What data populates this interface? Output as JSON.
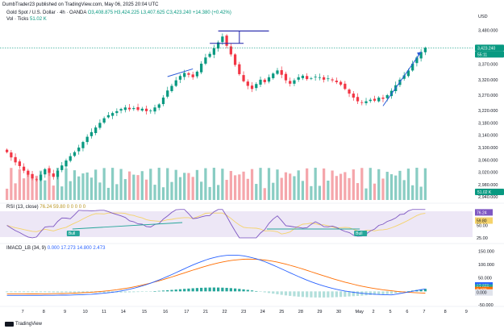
{
  "header": {
    "publisher": "DumbTrader23 published on TradingView.com, May 06, 2025 20:04 UTC",
    "title": "Gold Spot / U.S. Dollar · 4h · OANDA",
    "ohlc": "O3,408.875  H3,424.225  L3,407.625  C3,423.240  +14.380 (+0.42%)",
    "volume_label": "Vol · Ticks",
    "volume_value": "51.02 K",
    "currency": "USD"
  },
  "rsi_legend": {
    "label": "RSI (13, close)",
    "values": "76.24  59.80  0  0  0  0  0"
  },
  "macd_legend": {
    "label": "IMACD_LB (34, 9)",
    "values": "0.000  17.273  14.800  2.473"
  },
  "footer": {
    "brand": "TradingView"
  },
  "colors": {
    "up": "#089981",
    "down": "#f23645",
    "vol_up": "#89cdc3",
    "vol_down": "#f5a6ab",
    "rsi_line": "#7e57c2",
    "rsi_ma": "#f5d36b",
    "rsi_band": "#ede7f6",
    "macd_blue": "#2962ff",
    "macd_orange": "#ff6d00",
    "annot": "#1e22aa",
    "trend": "#2a5ad7",
    "price_tag": "#089981"
  },
  "chart_data": {
    "type": "candlestick",
    "symbol": "Gold Spot / U.S. Dollar",
    "interval": "4h",
    "x_ticks": [
      "7",
      "8",
      "9",
      "10",
      "11",
      "14",
      "15",
      "16",
      "17",
      "21",
      "22",
      "23",
      "24",
      "25",
      "28",
      "29",
      "30",
      "May",
      "2",
      "5",
      "6",
      "7",
      "8",
      "9"
    ],
    "y_ticks": [
      3480,
      3420,
      3370,
      3320,
      3270,
      3220,
      3180,
      3140,
      3100,
      3060,
      3020,
      2980,
      2940
    ],
    "y_tick_labels": [
      "3,480.000",
      "3,420.000",
      "3,370.000",
      "3,320.000",
      "3,270.000",
      "3,220.000",
      "3,180.000",
      "3,140.000",
      "3,100.000",
      "3,060.000",
      "3,020.000",
      "2,980.000",
      "2,940.000"
    ],
    "y_range": [
      2930,
      3500
    ],
    "last_price": 3423.24,
    "last_price_label": "3,423.240",
    "countdown_label": "55:11",
    "volume_tag": "51.02 K",
    "closes": [
      3085,
      3068,
      3052,
      3040,
      3025,
      3012,
      3000,
      2995,
      3012,
      3030,
      3018,
      3005,
      3025,
      3042,
      3058,
      3072,
      3085,
      3100,
      3118,
      3135,
      3150,
      3165,
      3180,
      3195,
      3205,
      3212,
      3218,
      3225,
      3230,
      3224,
      3228,
      3222,
      3226,
      3218,
      3220,
      3230,
      3240,
      3262,
      3285,
      3300,
      3318,
      3332,
      3342,
      3336,
      3328,
      3346,
      3372,
      3392,
      3404,
      3422,
      3441,
      3460,
      3430,
      3402,
      3368,
      3338,
      3315,
      3300,
      3290,
      3306,
      3320,
      3312,
      3328,
      3340,
      3350,
      3336,
      3318,
      3307,
      3318,
      3328,
      3333,
      3322,
      3325,
      3330,
      3328,
      3320,
      3324,
      3318,
      3312,
      3304,
      3290,
      3275,
      3262,
      3250,
      3245,
      3250,
      3255,
      3252,
      3262,
      3258,
      3270,
      3284,
      3302,
      3320,
      3334,
      3350,
      3372,
      3392,
      3410,
      3423
    ],
    "rsi": {
      "range": [
        20,
        85
      ],
      "ticks": [
        76.24,
        59.8,
        50,
        25
      ],
      "tick_labels": [
        "76.24",
        "59.80",
        "50.00",
        "25.00"
      ],
      "bull_labels": [
        "Bull",
        "Bull"
      ]
    },
    "macd": {
      "range": [
        -50,
        160
      ],
      "ticks": [
        150,
        100,
        50,
        0,
        -50
      ],
      "tick_labels": [
        "150.000",
        "100.000",
        "50.000",
        "0.000",
        "-50.000"
      ],
      "tags": [
        "17.273",
        "14.800",
        "2.473",
        "0.000"
      ]
    }
  }
}
